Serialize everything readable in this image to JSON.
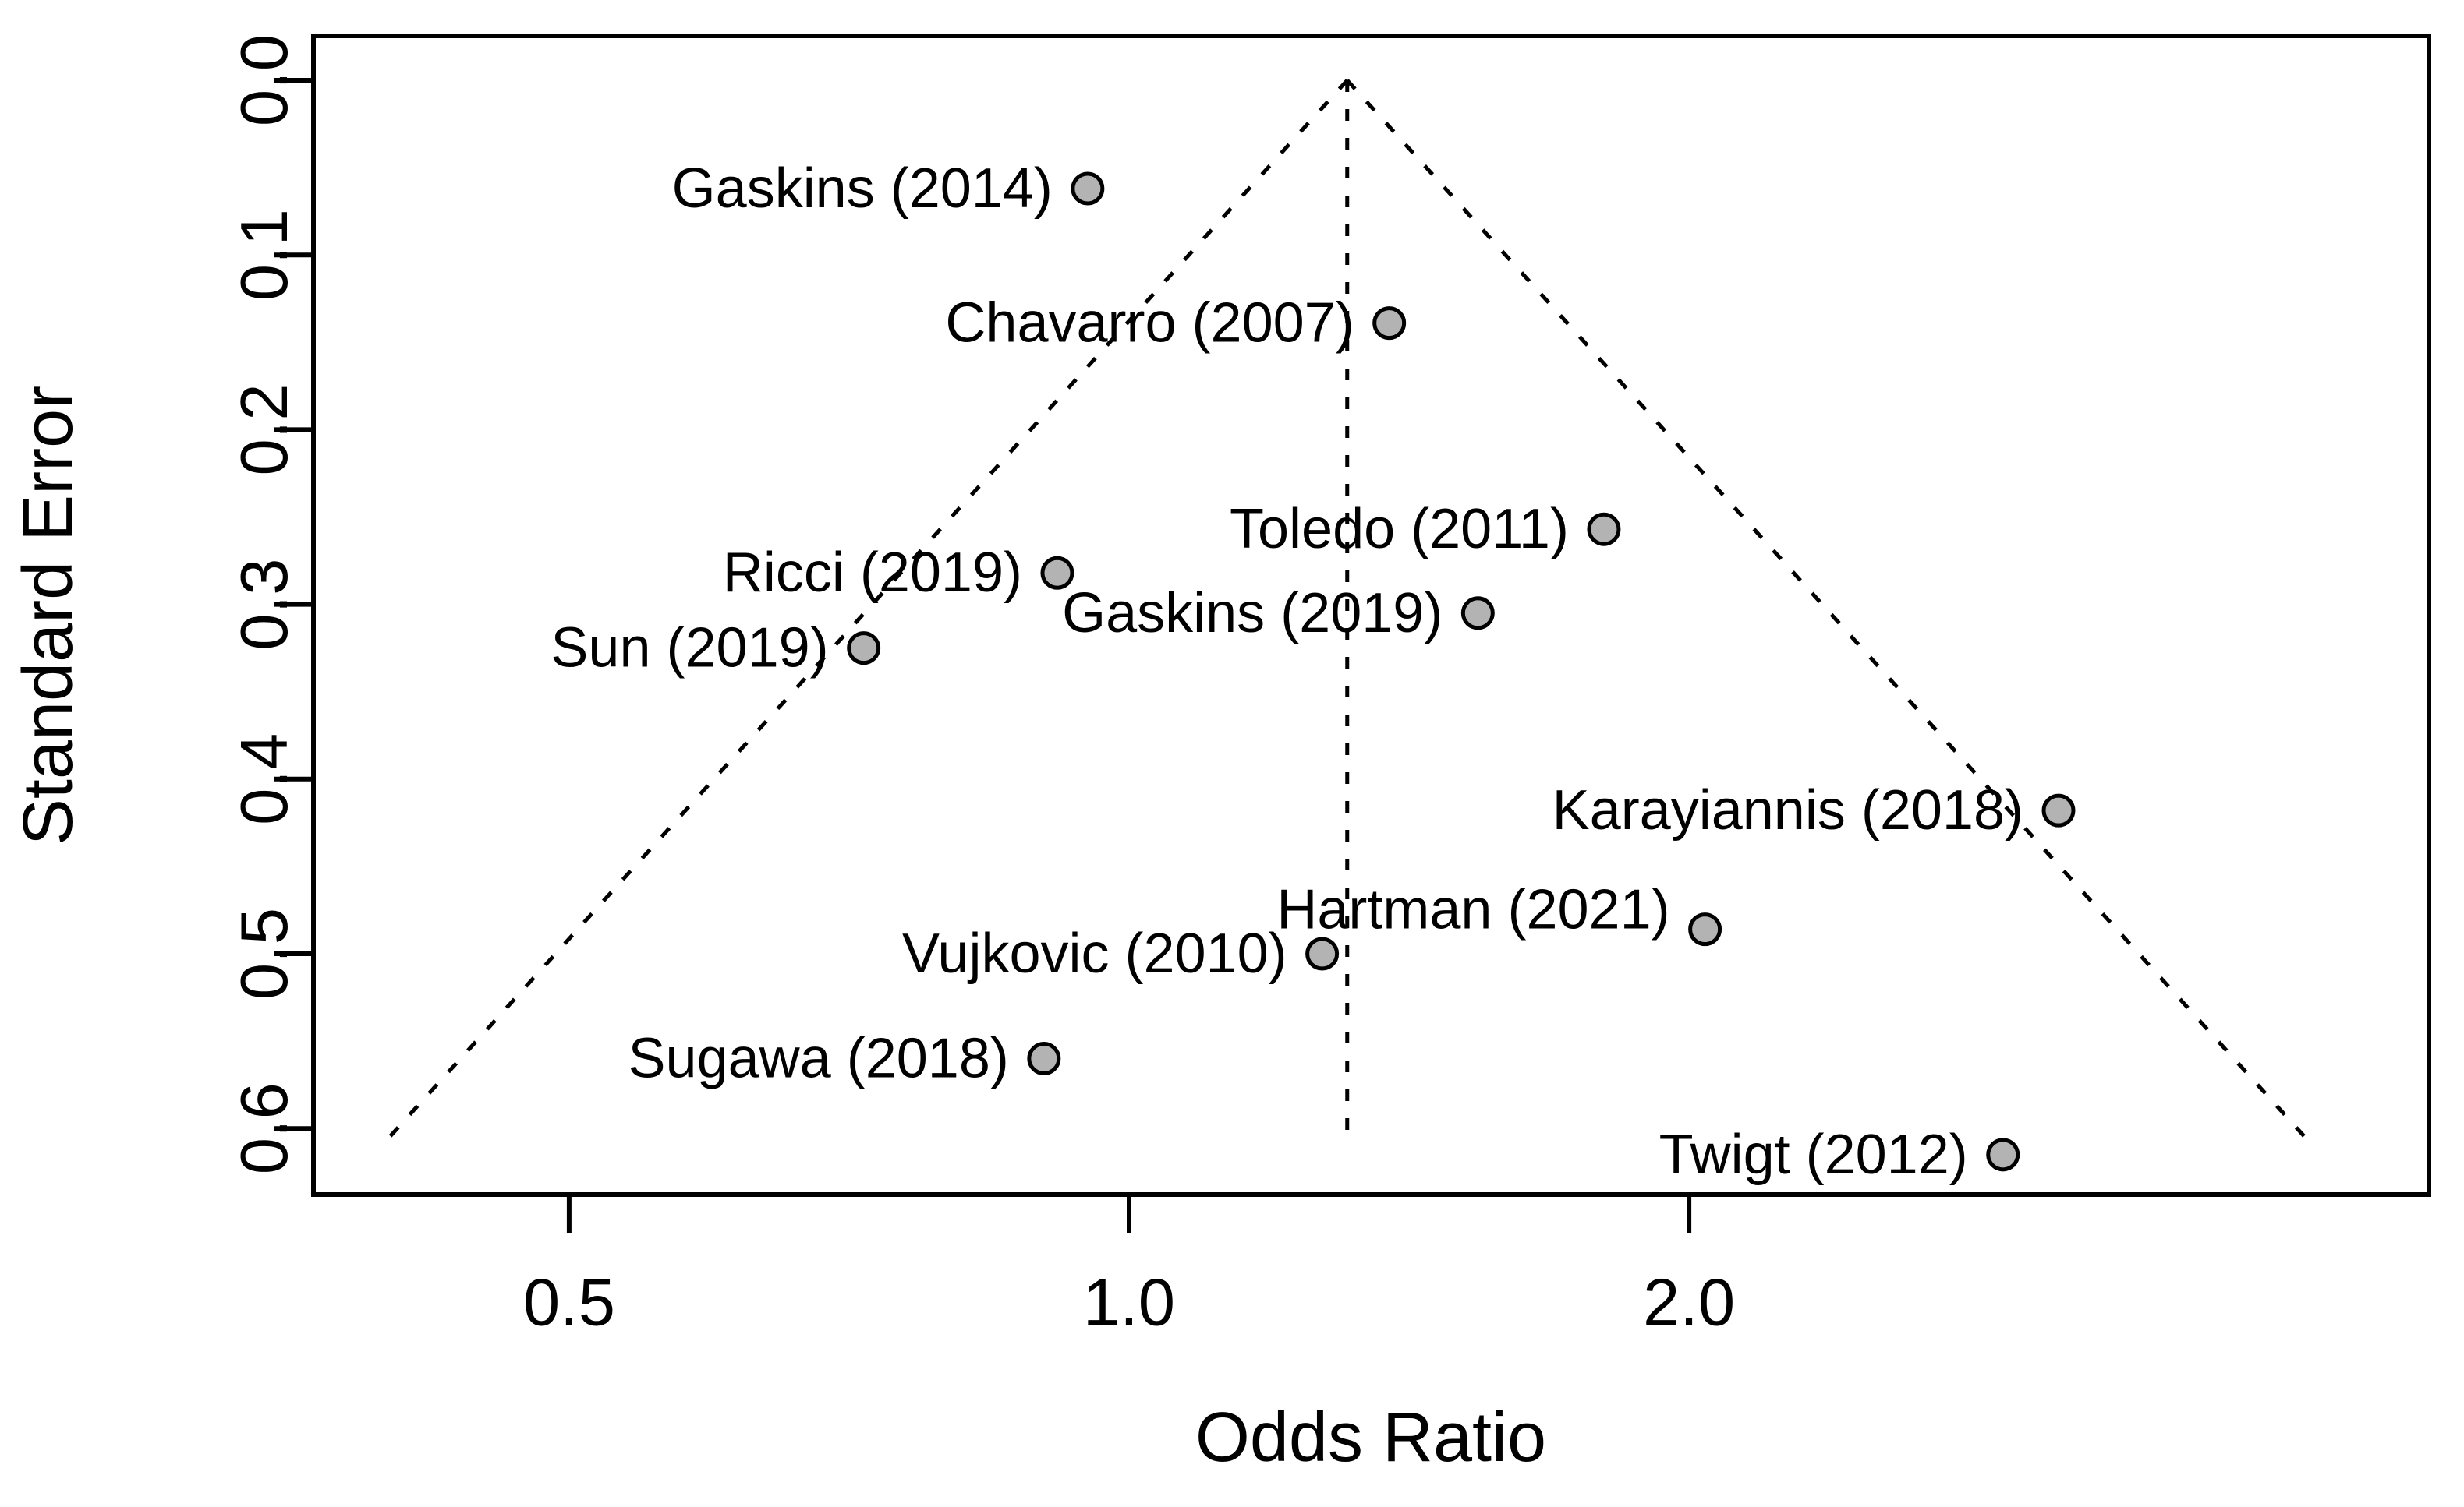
{
  "chart_data": {
    "type": "scatter",
    "subtype": "funnel-plot",
    "title": "",
    "xlabel": "Odds Ratio",
    "ylabel": "Standard Error",
    "x_scale": "log",
    "y_axis_inverted": true,
    "grid": false,
    "legend": false,
    "x_range": [
      0.36,
      5.0
    ],
    "y_range": [
      0.0,
      0.64
    ],
    "x_ticks": [
      {
        "value": 0.5,
        "label": "0.5"
      },
      {
        "value": 1.0,
        "label": "1.0"
      },
      {
        "value": 2.0,
        "label": "2.0"
      }
    ],
    "y_ticks": [
      {
        "value": 0.0,
        "label": "0.0"
      },
      {
        "value": 0.1,
        "label": "0.1"
      },
      {
        "value": 0.2,
        "label": "0.2"
      },
      {
        "value": 0.3,
        "label": "0.3"
      },
      {
        "value": 0.4,
        "label": "0.4"
      },
      {
        "value": 0.5,
        "label": "0.5"
      },
      {
        "value": 0.6,
        "label": "0.6"
      }
    ],
    "funnel": {
      "center_or": 1.31,
      "z": 1.96,
      "se_end": 0.606,
      "line_style": "dashed",
      "line_color": "#000000"
    },
    "marker": {
      "shape": "circle",
      "fill": "#b3b3b3",
      "stroke": "#000000"
    },
    "colors": {
      "axis": "#000000",
      "text": "#000000",
      "background": "#ffffff"
    },
    "points": [
      {
        "study": "Gaskins (2014)",
        "or": 0.95,
        "se": 0.062
      },
      {
        "study": "Chavarro (2007)",
        "or": 1.38,
        "se": 0.139
      },
      {
        "study": "Toledo (2011)",
        "or": 1.8,
        "se": 0.257
      },
      {
        "study": "Ricci (2019)",
        "or": 0.915,
        "se": 0.282
      },
      {
        "study": "Gaskins (2019)",
        "or": 1.54,
        "se": 0.305
      },
      {
        "study": "Sun (2019)",
        "or": 0.72,
        "se": 0.325
      },
      {
        "study": "Karayiannis (2018)",
        "or": 3.16,
        "se": 0.418
      },
      {
        "study": "Hartman (2021)",
        "or": 2.04,
        "se": 0.486,
        "label_dy": -25
      },
      {
        "study": "Vujkovic (2010)",
        "or": 1.27,
        "se": 0.5
      },
      {
        "study": "Sugawa (2018)",
        "or": 0.9,
        "se": 0.56
      },
      {
        "study": "Twigt (2012)",
        "or": 2.95,
        "se": 0.615
      }
    ]
  }
}
